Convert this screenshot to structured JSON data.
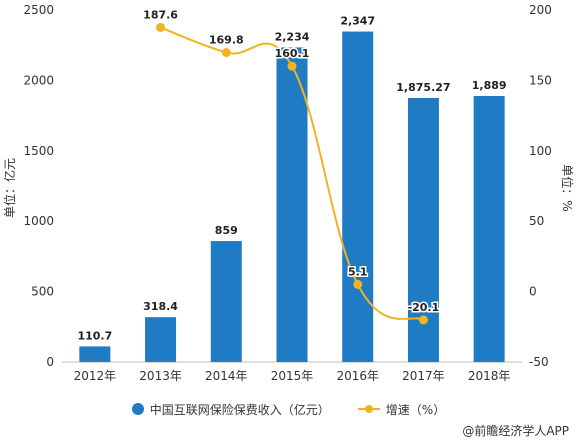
{
  "chart_data": {
    "type": "bar",
    "categories": [
      "2012年",
      "2013年",
      "2014年",
      "2015年",
      "2016年",
      "2017年",
      "2018年"
    ],
    "series": [
      {
        "name": "中国互联网保险保费收入（亿元）",
        "type": "bar",
        "axis": "left",
        "values": [
          110.7,
          318.4,
          859,
          2234,
          2347,
          1875.27,
          1889
        ],
        "labels": [
          "110.7",
          "318.4",
          "859",
          "2,234",
          "2,347",
          "1,875.27",
          "1,889"
        ]
      },
      {
        "name": "增速（%）",
        "type": "line",
        "axis": "right",
        "values": [
          null,
          187.6,
          169.8,
          160.1,
          5.1,
          -20.1,
          null
        ],
        "labels": [
          "",
          "187.6",
          "169.8",
          "160.1",
          "5.1",
          "-20.1",
          ""
        ]
      }
    ],
    "ylabel": "单位：亿元",
    "ylabel_right": "单位：%",
    "ylim": [
      0,
      2500
    ],
    "yticks": [
      0,
      500,
      1000,
      1500,
      2000,
      2500
    ],
    "ylim_right": [
      -50,
      200
    ],
    "yticks_right": [
      -50,
      0,
      50,
      100,
      150,
      200
    ],
    "grid": false,
    "legend_position": "bottom",
    "colors": {
      "bar": "#1f7bc4",
      "line": "#f0b323"
    }
  },
  "source": "@前瞻经济学人APP"
}
